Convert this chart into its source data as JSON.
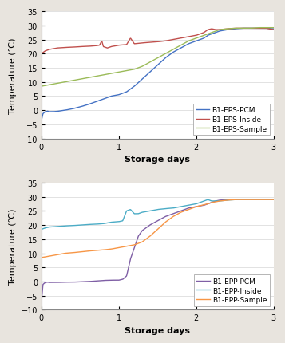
{
  "top": {
    "ylabel": "Temperature (℃)",
    "xlabel": "Storage days",
    "xlim": [
      0,
      3
    ],
    "ylim": [
      -10,
      35
    ],
    "yticks": [
      -10,
      -5,
      0,
      5,
      10,
      15,
      20,
      25,
      30,
      35
    ],
    "xticks": [
      0,
      1,
      2,
      3
    ],
    "lines": {
      "B1-EPS-PCM": {
        "color": "#4472C4",
        "points": [
          [
            0.0,
            -3.5
          ],
          [
            0.02,
            -1.2
          ],
          [
            0.05,
            -0.5
          ],
          [
            0.08,
            -0.3
          ],
          [
            0.1,
            -0.5
          ],
          [
            0.15,
            -0.5
          ],
          [
            0.2,
            -0.4
          ],
          [
            0.3,
            0.0
          ],
          [
            0.4,
            0.5
          ],
          [
            0.5,
            1.2
          ],
          [
            0.6,
            2.0
          ],
          [
            0.7,
            3.0
          ],
          [
            0.8,
            4.0
          ],
          [
            0.9,
            5.0
          ],
          [
            1.0,
            5.5
          ],
          [
            1.1,
            6.5
          ],
          [
            1.2,
            8.5
          ],
          [
            1.3,
            11.0
          ],
          [
            1.4,
            13.5
          ],
          [
            1.5,
            16.0
          ],
          [
            1.6,
            18.5
          ],
          [
            1.7,
            20.5
          ],
          [
            1.8,
            22.0
          ],
          [
            1.9,
            23.5
          ],
          [
            2.0,
            24.5
          ],
          [
            2.1,
            25.5
          ],
          [
            2.15,
            26.5
          ],
          [
            2.2,
            27.0
          ],
          [
            2.25,
            27.5
          ],
          [
            2.3,
            28.0
          ],
          [
            2.4,
            28.5
          ],
          [
            2.5,
            28.8
          ],
          [
            2.6,
            29.0
          ],
          [
            2.7,
            29.0
          ],
          [
            2.8,
            29.0
          ],
          [
            2.9,
            29.0
          ],
          [
            3.0,
            28.8
          ]
        ]
      },
      "B1-EPS-Inside": {
        "color": "#C0504D",
        "points": [
          [
            0.0,
            20.0
          ],
          [
            0.05,
            21.0
          ],
          [
            0.1,
            21.5
          ],
          [
            0.2,
            22.0
          ],
          [
            0.3,
            22.2
          ],
          [
            0.4,
            22.3
          ],
          [
            0.5,
            22.5
          ],
          [
            0.6,
            22.6
          ],
          [
            0.7,
            22.8
          ],
          [
            0.75,
            23.0
          ],
          [
            0.78,
            24.5
          ],
          [
            0.8,
            22.5
          ],
          [
            0.85,
            22.0
          ],
          [
            0.9,
            22.5
          ],
          [
            1.0,
            23.0
          ],
          [
            1.1,
            23.2
          ],
          [
            1.15,
            25.5
          ],
          [
            1.2,
            23.5
          ],
          [
            1.3,
            23.8
          ],
          [
            1.4,
            24.0
          ],
          [
            1.5,
            24.2
          ],
          [
            1.6,
            24.5
          ],
          [
            1.7,
            25.0
          ],
          [
            1.8,
            25.5
          ],
          [
            1.9,
            26.0
          ],
          [
            2.0,
            26.5
          ],
          [
            2.1,
            27.5
          ],
          [
            2.15,
            28.5
          ],
          [
            2.2,
            28.8
          ],
          [
            2.25,
            28.5
          ],
          [
            2.3,
            28.5
          ],
          [
            2.4,
            28.8
          ],
          [
            2.5,
            29.0
          ],
          [
            2.6,
            29.0
          ],
          [
            2.7,
            29.0
          ],
          [
            2.8,
            29.0
          ],
          [
            2.9,
            29.0
          ],
          [
            3.0,
            28.5
          ]
        ]
      },
      "B1-EPS-Sample": {
        "color": "#9BBB59",
        "points": [
          [
            0.0,
            8.5
          ],
          [
            0.1,
            9.0
          ],
          [
            0.2,
            9.5
          ],
          [
            0.3,
            10.0
          ],
          [
            0.4,
            10.5
          ],
          [
            0.5,
            11.0
          ],
          [
            0.6,
            11.5
          ],
          [
            0.7,
            12.0
          ],
          [
            0.8,
            12.5
          ],
          [
            0.9,
            13.0
          ],
          [
            1.0,
            13.5
          ],
          [
            1.1,
            14.0
          ],
          [
            1.2,
            14.5
          ],
          [
            1.3,
            15.5
          ],
          [
            1.4,
            17.0
          ],
          [
            1.5,
            18.5
          ],
          [
            1.6,
            20.0
          ],
          [
            1.7,
            21.5
          ],
          [
            1.8,
            23.0
          ],
          [
            1.9,
            24.5
          ],
          [
            2.0,
            25.5
          ],
          [
            2.1,
            26.5
          ],
          [
            2.15,
            27.0
          ],
          [
            2.2,
            27.5
          ],
          [
            2.25,
            28.0
          ],
          [
            2.3,
            28.5
          ],
          [
            2.4,
            28.8
          ],
          [
            2.5,
            29.0
          ],
          [
            2.6,
            29.0
          ],
          [
            2.7,
            29.0
          ],
          [
            2.8,
            29.2
          ],
          [
            2.9,
            29.2
          ],
          [
            3.0,
            29.2
          ]
        ]
      }
    }
  },
  "bottom": {
    "ylabel": "Temperature (℃)",
    "xlabel": "Storage days",
    "xlim": [
      0,
      3
    ],
    "ylim": [
      -10,
      35
    ],
    "yticks": [
      -10,
      -5,
      0,
      5,
      10,
      15,
      20,
      25,
      30,
      35
    ],
    "xticks": [
      0,
      1,
      2,
      3
    ],
    "lines": {
      "B1-EPP-PCM": {
        "color": "#7F5FA5",
        "points": [
          [
            0.0,
            -7.0
          ],
          [
            0.02,
            -1.0
          ],
          [
            0.05,
            -0.3
          ],
          [
            0.08,
            -0.2
          ],
          [
            0.1,
            -0.3
          ],
          [
            0.15,
            -0.3
          ],
          [
            0.2,
            -0.3
          ],
          [
            0.3,
            -0.2
          ],
          [
            0.4,
            -0.2
          ],
          [
            0.5,
            -0.1
          ],
          [
            0.6,
            0.0
          ],
          [
            0.7,
            0.2
          ],
          [
            0.8,
            0.4
          ],
          [
            0.9,
            0.5
          ],
          [
            1.0,
            0.5
          ],
          [
            1.05,
            0.8
          ],
          [
            1.1,
            2.0
          ],
          [
            1.15,
            8.0
          ],
          [
            1.2,
            12.0
          ],
          [
            1.25,
            16.0
          ],
          [
            1.3,
            18.0
          ],
          [
            1.4,
            20.0
          ],
          [
            1.5,
            21.5
          ],
          [
            1.6,
            23.0
          ],
          [
            1.7,
            24.0
          ],
          [
            1.8,
            25.0
          ],
          [
            1.9,
            26.0
          ],
          [
            2.0,
            26.5
          ],
          [
            2.1,
            27.0
          ],
          [
            2.15,
            27.5
          ],
          [
            2.2,
            28.0
          ],
          [
            2.25,
            28.5
          ],
          [
            2.3,
            28.8
          ],
          [
            2.4,
            29.0
          ],
          [
            2.5,
            29.0
          ],
          [
            2.6,
            29.0
          ],
          [
            2.7,
            29.0
          ],
          [
            2.8,
            29.0
          ],
          [
            2.9,
            29.0
          ],
          [
            3.0,
            29.0
          ]
        ]
      },
      "B1-EPP-Inside": {
        "color": "#4BACC6",
        "points": [
          [
            0.0,
            18.5
          ],
          [
            0.05,
            19.0
          ],
          [
            0.1,
            19.3
          ],
          [
            0.2,
            19.5
          ],
          [
            0.3,
            19.7
          ],
          [
            0.4,
            19.8
          ],
          [
            0.5,
            20.0
          ],
          [
            0.6,
            20.2
          ],
          [
            0.7,
            20.3
          ],
          [
            0.8,
            20.5
          ],
          [
            0.9,
            21.0
          ],
          [
            1.0,
            21.2
          ],
          [
            1.05,
            21.5
          ],
          [
            1.1,
            25.0
          ],
          [
            1.15,
            25.5
          ],
          [
            1.2,
            24.0
          ],
          [
            1.25,
            24.0
          ],
          [
            1.3,
            24.5
          ],
          [
            1.4,
            25.0
          ],
          [
            1.5,
            25.5
          ],
          [
            1.6,
            25.8
          ],
          [
            1.7,
            26.0
          ],
          [
            1.8,
            26.5
          ],
          [
            1.9,
            27.0
          ],
          [
            2.0,
            27.5
          ],
          [
            2.1,
            28.5
          ],
          [
            2.15,
            29.0
          ],
          [
            2.2,
            28.5
          ],
          [
            2.25,
            28.5
          ],
          [
            2.3,
            28.5
          ],
          [
            2.4,
            28.8
          ],
          [
            2.5,
            29.0
          ],
          [
            2.6,
            29.0
          ],
          [
            2.7,
            29.0
          ],
          [
            2.8,
            29.0
          ],
          [
            2.9,
            29.0
          ],
          [
            3.0,
            29.0
          ]
        ]
      },
      "B1-EPP-Sample": {
        "color": "#F79646",
        "points": [
          [
            0.0,
            8.5
          ],
          [
            0.1,
            9.0
          ],
          [
            0.2,
            9.5
          ],
          [
            0.3,
            10.0
          ],
          [
            0.4,
            10.2
          ],
          [
            0.5,
            10.5
          ],
          [
            0.6,
            10.8
          ],
          [
            0.7,
            11.0
          ],
          [
            0.8,
            11.2
          ],
          [
            0.9,
            11.5
          ],
          [
            1.0,
            12.0
          ],
          [
            1.1,
            12.5
          ],
          [
            1.2,
            13.0
          ],
          [
            1.3,
            14.0
          ],
          [
            1.4,
            16.0
          ],
          [
            1.5,
            18.5
          ],
          [
            1.6,
            21.0
          ],
          [
            1.7,
            23.0
          ],
          [
            1.8,
            24.5
          ],
          [
            1.9,
            25.5
          ],
          [
            2.0,
            26.5
          ],
          [
            2.1,
            27.2
          ],
          [
            2.15,
            27.5
          ],
          [
            2.2,
            28.0
          ],
          [
            2.25,
            28.2
          ],
          [
            2.3,
            28.5
          ],
          [
            2.4,
            28.8
          ],
          [
            2.5,
            29.0
          ],
          [
            2.6,
            29.0
          ],
          [
            2.7,
            29.0
          ],
          [
            2.8,
            29.0
          ],
          [
            2.9,
            29.0
          ],
          [
            3.0,
            29.0
          ]
        ]
      }
    }
  },
  "fig_bg": "#e8e4de",
  "plot_bg": "#ffffff",
  "legend_fontsize": 6.5,
  "axis_label_fontsize": 8,
  "tick_fontsize": 7,
  "line_width": 1.0
}
